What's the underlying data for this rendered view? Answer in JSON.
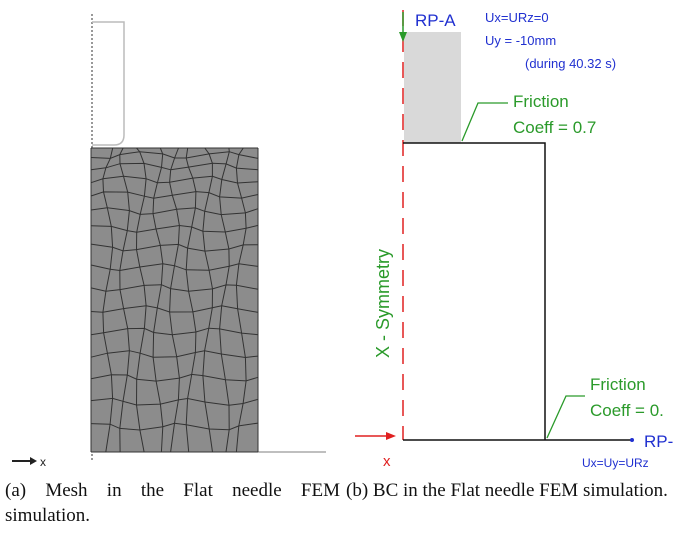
{
  "panel_a": {
    "axis_label": "x",
    "caption": "(a) Mesh in the Flat needle FEM simulation."
  },
  "panel_b": {
    "reference_point_top": "RP-A",
    "bc_top_1": "Ux=URz=0",
    "bc_top_2": "Uy = -10mm",
    "bc_top_3": "(during 40.32 s)",
    "friction_top_1": "Friction",
    "friction_top_2": "Coeff = 0.7",
    "symmetry_label": "X - Symmetry",
    "friction_bottom_1": "Friction",
    "friction_bottom_2": "Coeff = 0.",
    "reference_point_bottom": "RP-",
    "bc_bottom": "Ux=Uy=URz",
    "axis_label": "x",
    "caption": "(b) BC in the Flat needle FEM simulation."
  }
}
